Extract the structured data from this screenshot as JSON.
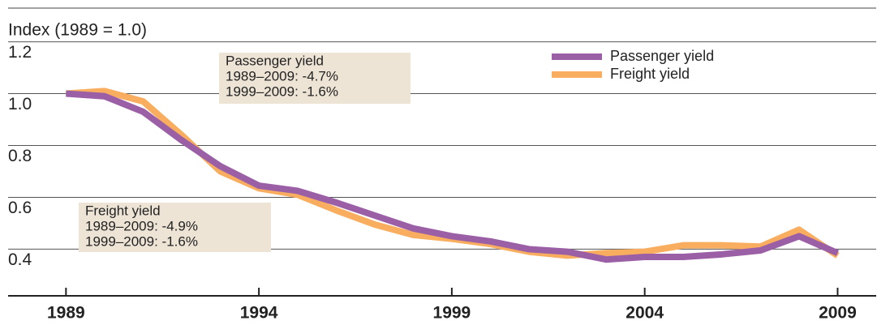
{
  "chart_data": {
    "type": "line",
    "y_axis_label": "Index (1989 = 1.0)",
    "x": [
      1989,
      1990,
      1991,
      1992,
      1993,
      1994,
      1995,
      1996,
      1997,
      1998,
      1999,
      2000,
      2001,
      2002,
      2003,
      2004,
      2005,
      2006,
      2007,
      2008,
      2009
    ],
    "series": [
      {
        "name": "Passenger yield",
        "color": "#9b5fa6",
        "values": [
          1.0,
          0.99,
          0.93,
          0.82,
          0.72,
          0.645,
          0.625,
          0.58,
          0.53,
          0.48,
          0.45,
          0.43,
          0.4,
          0.39,
          0.36,
          0.37,
          0.37,
          0.38,
          0.395,
          0.45,
          0.385
        ]
      },
      {
        "name": "Freight yield",
        "color": "#f9ad5e",
        "values": [
          1.0,
          1.01,
          0.97,
          0.84,
          0.7,
          0.635,
          0.61,
          0.55,
          0.495,
          0.455,
          0.44,
          0.42,
          0.39,
          0.375,
          0.385,
          0.39,
          0.415,
          0.415,
          0.41,
          0.475,
          0.375
        ]
      }
    ],
    "xlim": [
      1987.5,
      2010
    ],
    "xticks": [
      1989,
      1994,
      1999,
      2004,
      2009
    ],
    "ylim": [
      0.22,
      1.33
    ],
    "yticks": [
      0.4,
      0.6,
      0.8,
      {
        "value": 1,
        "label": "1.0"
      },
      1.2
    ],
    "grid": true,
    "legend": "top-right",
    "annotations": [
      {
        "lines": [
          "Passenger yield",
          "1989–2009: -4.7%",
          "1999–2009: -1.6%"
        ]
      },
      {
        "lines": [
          "Freight yield",
          "1989–2009: -4.9%",
          "1999–2009: -1.6%"
        ]
      }
    ]
  }
}
